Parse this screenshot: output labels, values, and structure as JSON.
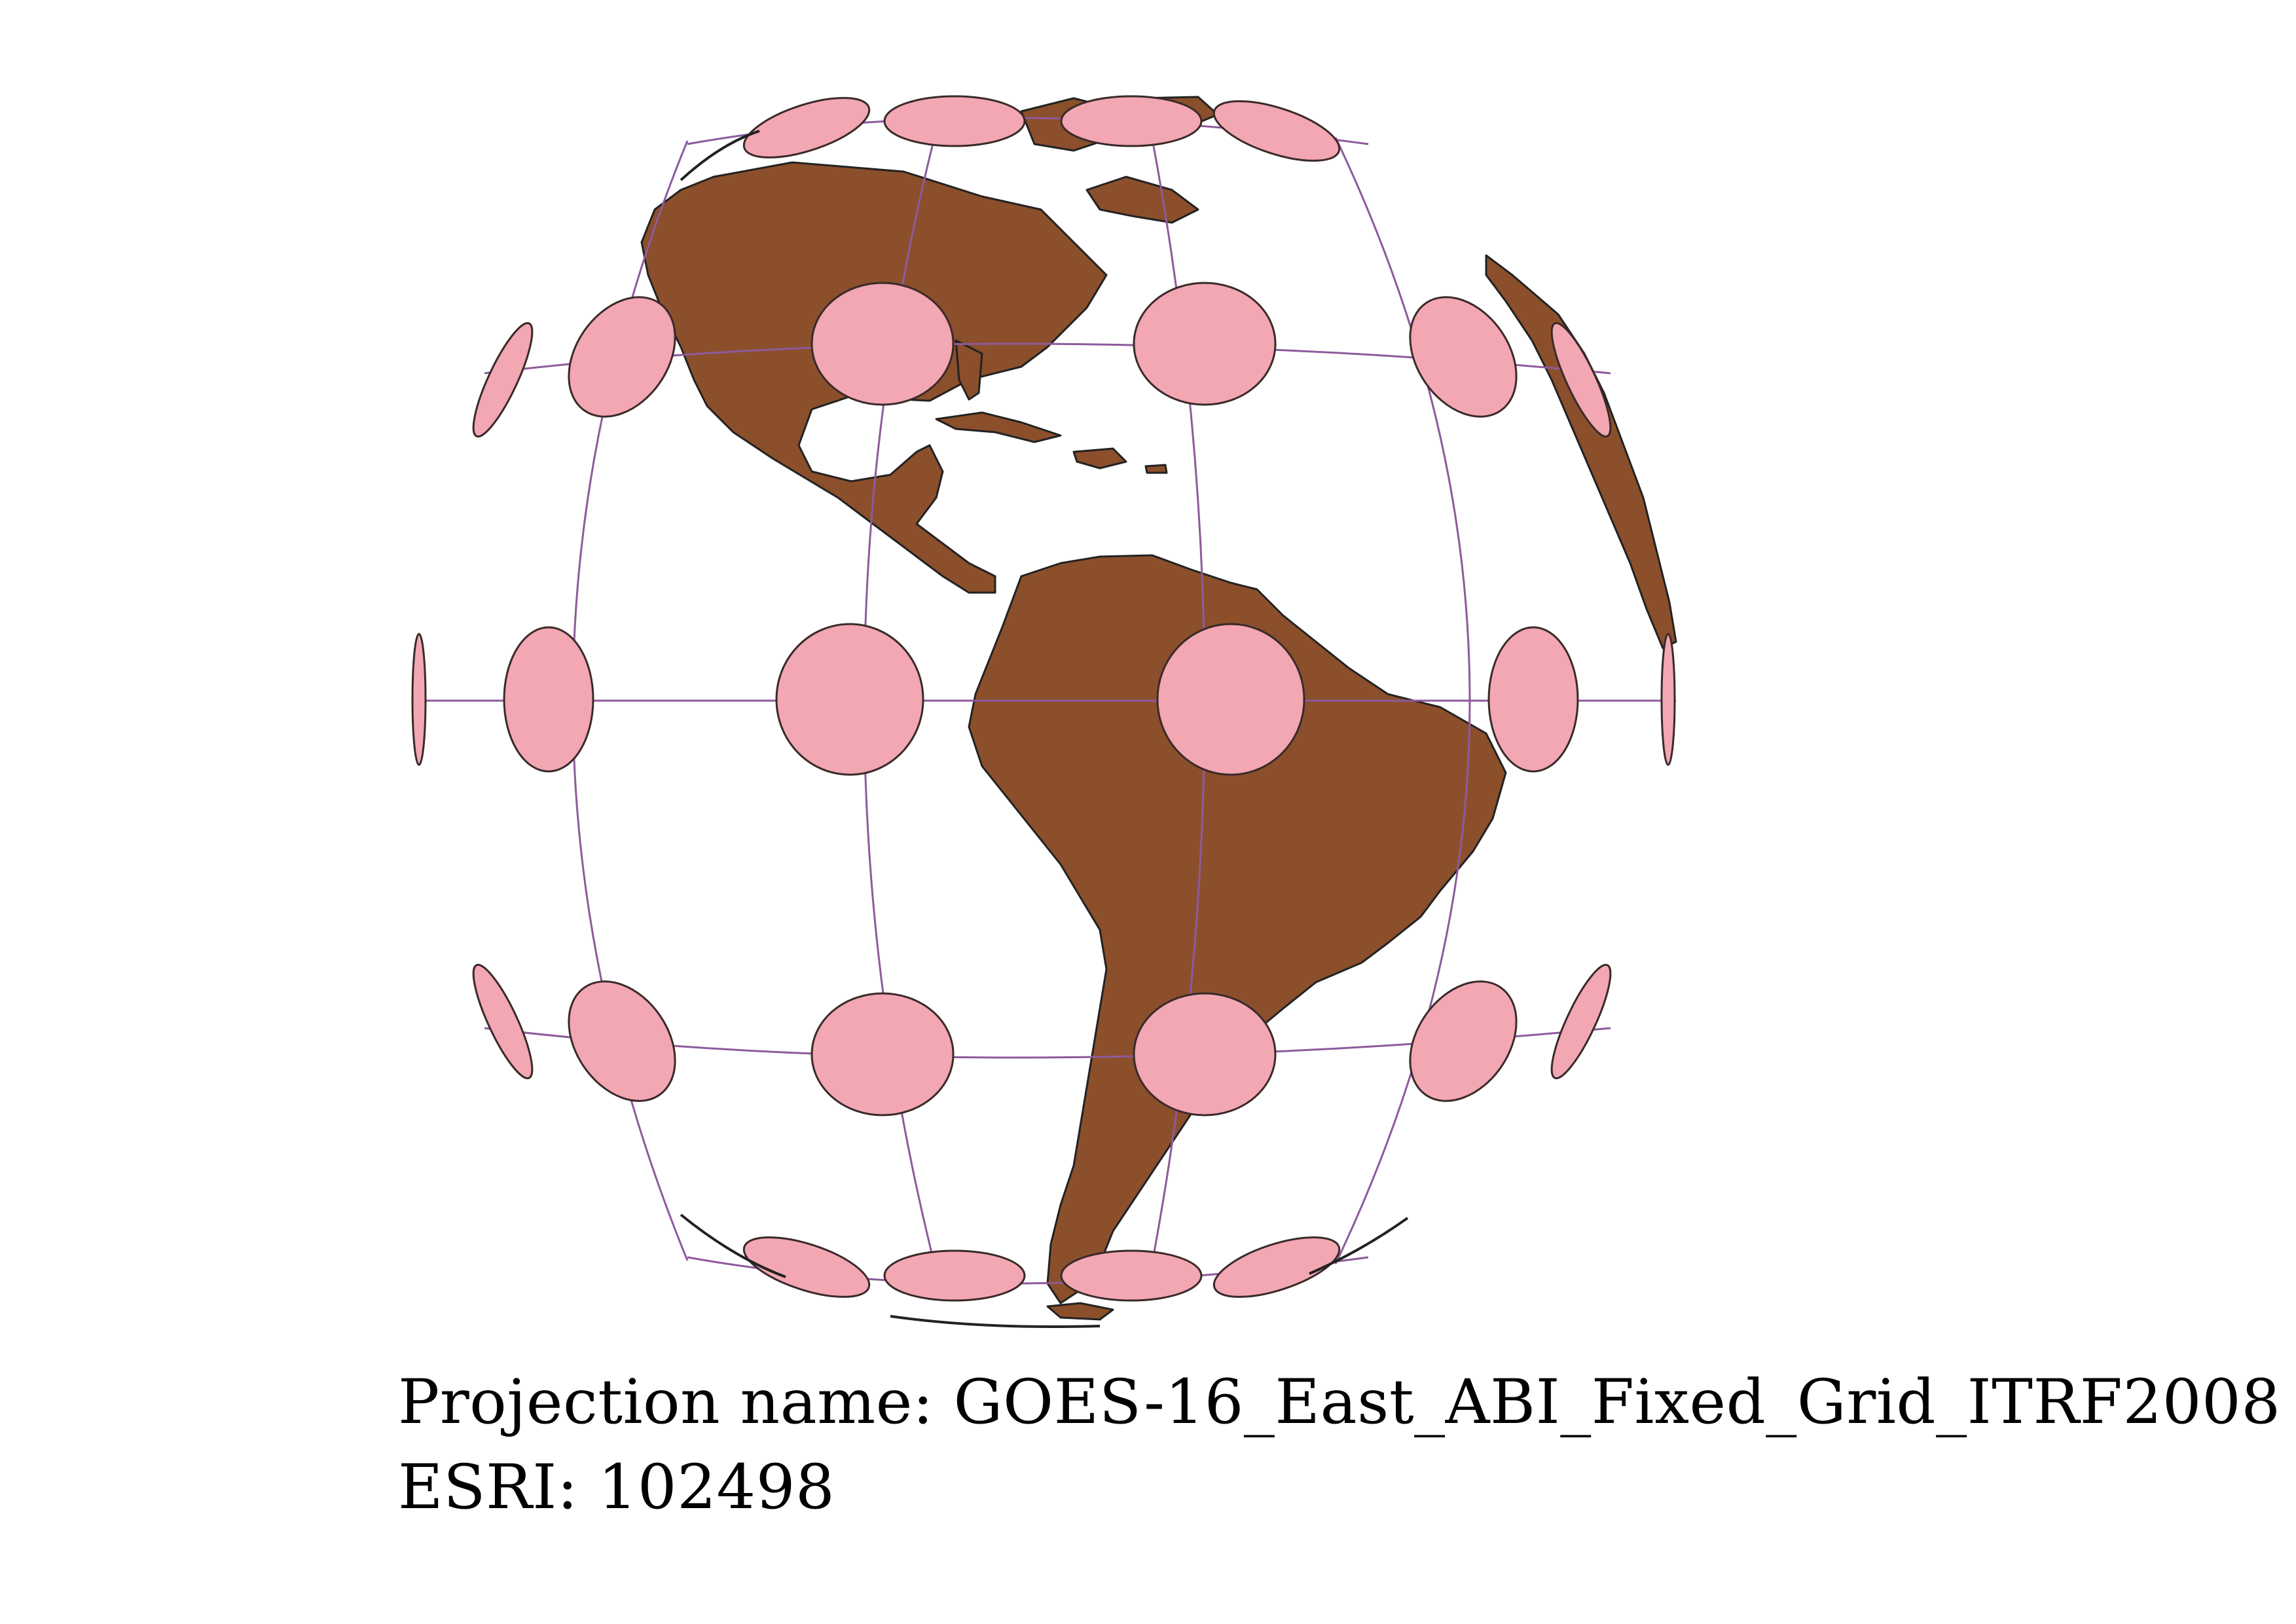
{
  "map": {
    "projection_label": "Projection name:",
    "projection_value": "GOES-16_East_ABI_Fixed_Grid_ITRF2008",
    "code_label": "ESRI:",
    "code_value": "102498",
    "graticule": {
      "parallels_deg": [
        -60,
        -30,
        0,
        30,
        60
      ],
      "meridians_deg": [
        -165,
        -135,
        -105,
        -75,
        -45,
        -15,
        15
      ]
    },
    "tissot_indicatrix": {
      "latitudes_deg": [
        -60,
        -30,
        0,
        30,
        60
      ],
      "longitudes_deg": [
        -165,
        -135,
        -105,
        -75,
        -45,
        -15,
        15
      ]
    },
    "colors": {
      "land": "#8B4F2B",
      "coastline": "#222222",
      "graticule": "#8E5A9C",
      "ellipse_fill": "#F2A7B2",
      "ellipse_stroke": "#3a2a2a",
      "background": "#FFFFFF",
      "text": "#000000"
    }
  }
}
